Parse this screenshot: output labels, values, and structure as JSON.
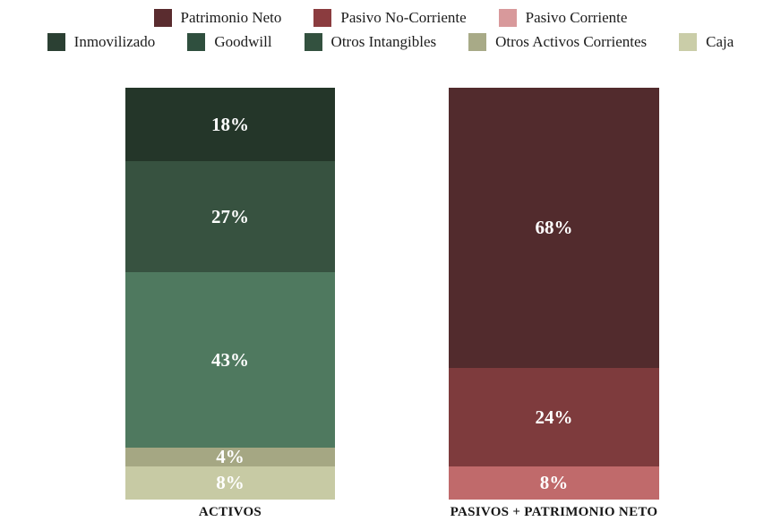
{
  "chart_data": {
    "type": "bar",
    "subtype": "100-percent-stacked-column",
    "title": "",
    "xlabel": "",
    "ylabel": "",
    "ylim": [
      0,
      100
    ],
    "grid": false,
    "legend_position": "top",
    "value_label_color": "#FFFFFF",
    "categories": [
      "ACTIVOS",
      "PASIVOS + PATRIMONIO NETO"
    ],
    "stacks": [
      {
        "category": "ACTIVOS",
        "segments": [
          {
            "name": "Inmovilizado",
            "value": 18,
            "label": "18%",
            "color": "#243629"
          },
          {
            "name": "Goodwill",
            "value": 27,
            "label": "27%",
            "color": "#375240"
          },
          {
            "name": "Otros Intangibles",
            "value": 43,
            "label": "43%",
            "color": "#4F795F"
          },
          {
            "name": "Otros Activos Corrientes",
            "value": 4,
            "label": "4%",
            "color": "#A5A783"
          },
          {
            "name": "Caja",
            "value": 8,
            "label": "8%",
            "color": "#C7CAA4"
          }
        ]
      },
      {
        "category": "PASIVOS + PATRIMONIO NETO",
        "segments": [
          {
            "name": "Patrimonio Neto",
            "value": 68,
            "label": "68%",
            "color": "#522B2D"
          },
          {
            "name": "Pasivo No-Corriente",
            "value": 24,
            "label": "24%",
            "color": "#7E3B3D"
          },
          {
            "name": "Pasivo Corriente",
            "value": 8,
            "label": "8%",
            "color": "#C06A6B"
          }
        ]
      }
    ]
  },
  "legend": {
    "rows": [
      [
        {
          "label": "Patrimonio Neto",
          "swatch": "#5A2C2F"
        },
        {
          "label": "Pasivo No-Corriente",
          "swatch": "#8B3C3F"
        },
        {
          "label": "Pasivo Corriente",
          "swatch": "#D8999B"
        }
      ],
      [
        {
          "label": "Inmovilizado",
          "swatch": "#2B4033"
        },
        {
          "label": "Goodwill",
          "swatch": "#2F4F3E"
        },
        {
          "label": "Otros Intangibles",
          "swatch": "#33513F"
        },
        {
          "label": "Otros Activos Corrientes",
          "swatch": "#A8AA87"
        },
        {
          "label": "Caja",
          "swatch": "#CACDA8"
        }
      ]
    ]
  }
}
